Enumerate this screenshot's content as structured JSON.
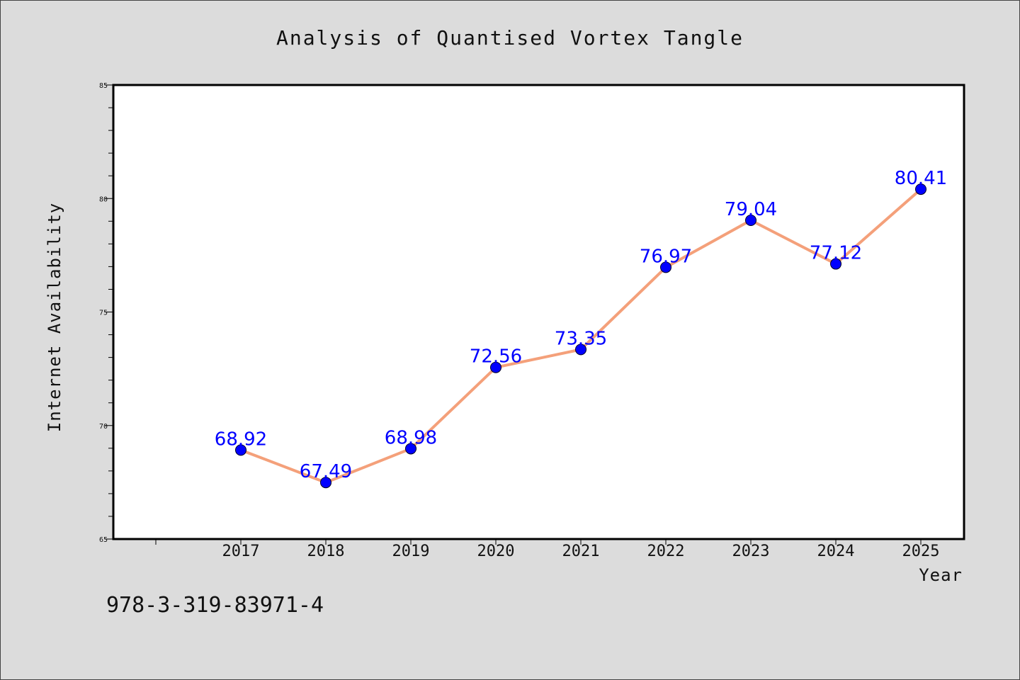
{
  "chart_data": {
    "type": "line",
    "title": "Analysis of Quantised Vortex Tangle",
    "xlabel": "Year",
    "ylabel": "Internet Availability",
    "categories": [
      "2017",
      "2018",
      "2019",
      "2020",
      "2021",
      "2022",
      "2023",
      "2024",
      "2025"
    ],
    "series": [
      {
        "values": [
          68.92,
          67.49,
          68.98,
          72.56,
          73.35,
          76.97,
          79.04,
          77.12,
          80.41
        ],
        "value_labels": [
          "68.92",
          "67.49",
          "68.98",
          "72.56",
          "73.35",
          "76.97",
          "79.04",
          "77.12",
          "80.41"
        ],
        "line_color": "#f4a07a",
        "marker_color": "#0000ff"
      }
    ],
    "ylim": [
      65,
      85
    ],
    "yticks": [
      "65",
      "70",
      "75",
      "80",
      "85"
    ],
    "grid": false,
    "legend": "none"
  },
  "footer": {
    "isbn": "978-3-319-83971-4"
  },
  "colors": {
    "background": "#dcdcdc",
    "plot_area": "#ffffff",
    "label": "#0000ff"
  }
}
